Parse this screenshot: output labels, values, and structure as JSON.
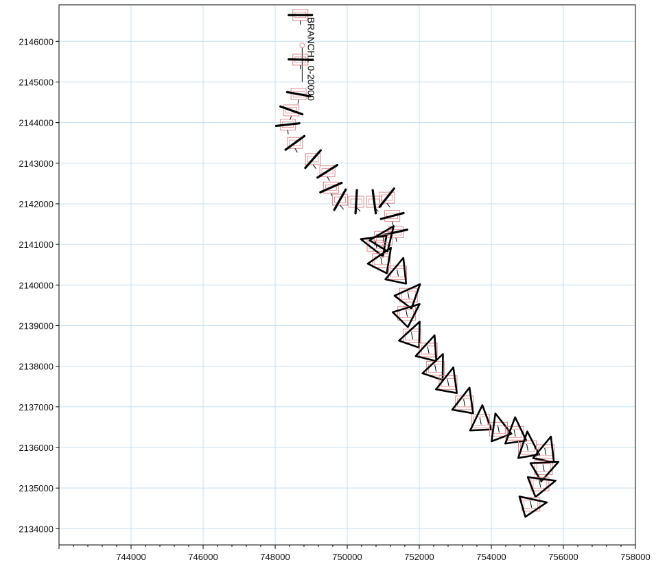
{
  "chart_data": {
    "type": "map-plot",
    "title": "",
    "xlabel": "",
    "ylabel": "",
    "xlim": [
      742000,
      758000
    ],
    "ylim": [
      2133600,
      2146900
    ],
    "grid": true,
    "colors": {
      "grid": "#c5dff0",
      "frame": "#000000",
      "symbol": "#000000",
      "box_outline": "#d98a8a",
      "box_outline_alt": "#8f8fc8",
      "branch_line": "#000000"
    },
    "x_ticks": [
      {
        "value": 744000,
        "label": "744000"
      },
      {
        "value": 746000,
        "label": "746000"
      },
      {
        "value": 748000,
        "label": "748000"
      },
      {
        "value": 750000,
        "label": "750000"
      },
      {
        "value": 752000,
        "label": "752000"
      },
      {
        "value": 754000,
        "label": "754000"
      },
      {
        "value": 756000,
        "label": "756000"
      },
      {
        "value": 758000,
        "label": "758000"
      }
    ],
    "y_ticks": [
      {
        "value": 2134000,
        "label": "2134000"
      },
      {
        "value": 2135000,
        "label": "2135000"
      },
      {
        "value": 2136000,
        "label": "2136000"
      },
      {
        "value": 2137000,
        "label": "2137000"
      },
      {
        "value": 2138000,
        "label": "2138000"
      },
      {
        "value": 2139000,
        "label": "2139000"
      },
      {
        "value": 2140000,
        "label": "2140000"
      },
      {
        "value": 2141000,
        "label": "2141000"
      },
      {
        "value": 2142000,
        "label": "2142000"
      },
      {
        "value": 2143000,
        "label": "2143000"
      },
      {
        "value": 2144000,
        "label": "2144000"
      },
      {
        "value": 2145000,
        "label": "2145000"
      },
      {
        "value": 2146000,
        "label": "2146000"
      }
    ],
    "branch": {
      "name": "BRANCH1",
      "chainage": "0-20000",
      "label": "BRANCH1  0-20000",
      "line": [
        [
          748750,
          2145900
        ],
        [
          748750,
          2145000
        ]
      ]
    },
    "bars": [
      {
        "x": 748700,
        "y": 2146650
      },
      {
        "x": 748700,
        "y": 2145550
      },
      {
        "x": 748650,
        "y": 2144700
      },
      {
        "x": 748450,
        "y": 2144300
      },
      {
        "x": 748350,
        "y": 2143950
      },
      {
        "x": 748550,
        "y": 2143500
      },
      {
        "x": 749050,
        "y": 2143100
      },
      {
        "x": 749450,
        "y": 2142800
      },
      {
        "x": 749550,
        "y": 2142400
      },
      {
        "x": 749800,
        "y": 2142100
      },
      {
        "x": 750250,
        "y": 2142050
      },
      {
        "x": 750750,
        "y": 2142050
      },
      {
        "x": 751100,
        "y": 2142150
      },
      {
        "x": 751250,
        "y": 2141700
      },
      {
        "x": 751350,
        "y": 2141300
      }
    ],
    "triangles": [
      {
        "x": 750800,
        "y": 2141000
      },
      {
        "x": 751000,
        "y": 2141150
      },
      {
        "x": 750950,
        "y": 2140600
      },
      {
        "x": 751400,
        "y": 2140300
      },
      {
        "x": 751700,
        "y": 2139750
      },
      {
        "x": 751650,
        "y": 2139300
      },
      {
        "x": 751800,
        "y": 2138750
      },
      {
        "x": 752250,
        "y": 2138400
      },
      {
        "x": 752450,
        "y": 2137950
      },
      {
        "x": 752800,
        "y": 2137600
      },
      {
        "x": 753250,
        "y": 2137100
      },
      {
        "x": 753700,
        "y": 2136650
      },
      {
        "x": 754200,
        "y": 2136450
      },
      {
        "x": 754650,
        "y": 2136350
      },
      {
        "x": 755000,
        "y": 2136000
      },
      {
        "x": 755500,
        "y": 2135900
      },
      {
        "x": 755450,
        "y": 2135500
      },
      {
        "x": 755350,
        "y": 2135100
      },
      {
        "x": 755100,
        "y": 2134600
      }
    ]
  }
}
